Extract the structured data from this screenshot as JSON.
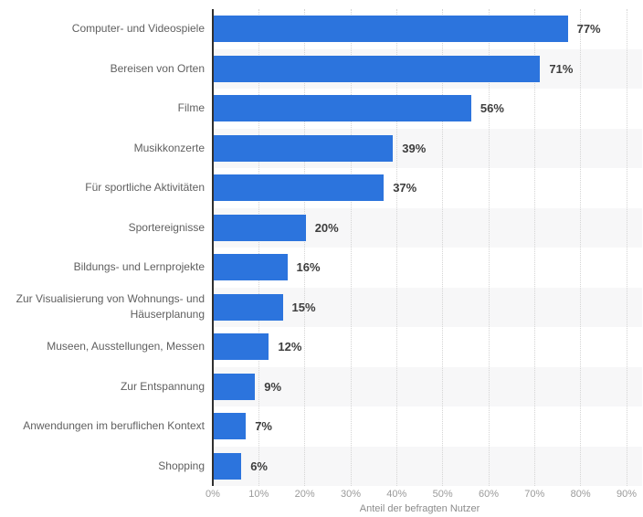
{
  "chart_data": {
    "type": "bar",
    "orientation": "horizontal",
    "title": "",
    "categories": [
      "Computer- und Videospiele",
      "Bereisen von Orten",
      "Filme",
      "Musikkonzerte",
      "Für sportliche Aktivitäten",
      "Sportereignisse",
      "Bildungs- und Lernprojekte",
      "Zur Visualisierung von Wohnungs- und Häuserplanung",
      "Museen, Ausstellungen, Messen",
      "Zur Entspannung",
      "Anwendungen im beruflichen Kontext",
      "Shopping"
    ],
    "values": [
      77,
      71,
      56,
      39,
      37,
      20,
      16,
      15,
      12,
      9,
      7,
      6
    ],
    "value_suffix": "%",
    "xlabel": "Anteil der befragten Nutzer",
    "ylabel": "",
    "x_ticks": [
      "0%",
      "10%",
      "20%",
      "30%",
      "40%",
      "50%",
      "60%",
      "70%",
      "80%",
      "90%"
    ],
    "xlim": [
      0,
      90
    ],
    "grid": "vertical-dotted",
    "legend": "none",
    "row_striping": "alternate-even-shaded",
    "colors": {
      "bar": "#2c74dd",
      "axis_line": "#303030",
      "gridline": "#d4d4d4",
      "row_stripe": "#f7f7f8",
      "category_label": "#606060",
      "value_label": "#3d3d3d",
      "tick_label": "#9b9b9b",
      "axis_title": "#8c8c8c",
      "background": "#ffffff"
    }
  }
}
